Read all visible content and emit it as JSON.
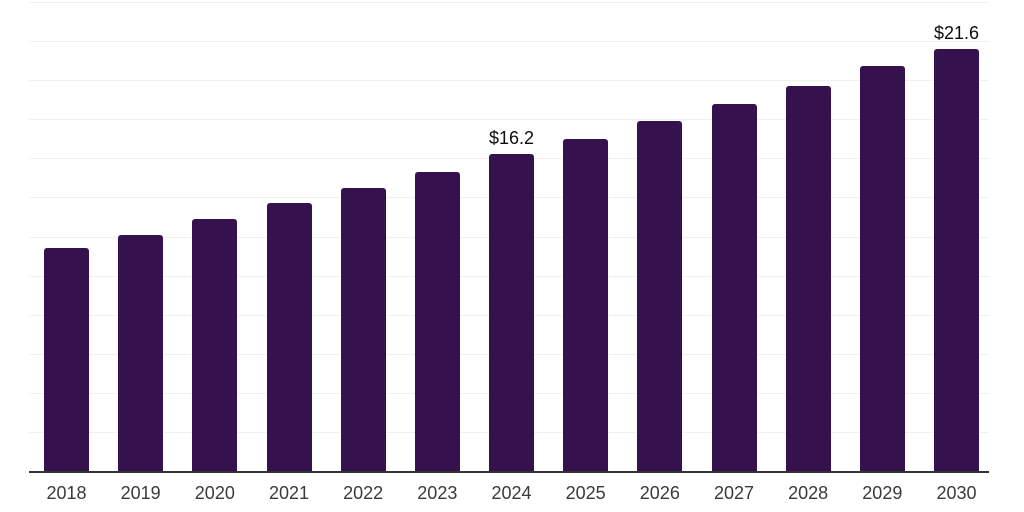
{
  "chart_data": {
    "type": "bar",
    "categories": [
      "2018",
      "2019",
      "2020",
      "2021",
      "2022",
      "2023",
      "2024",
      "2025",
      "2026",
      "2027",
      "2028",
      "2029",
      "2030"
    ],
    "values": [
      11.4,
      12.1,
      12.9,
      13.7,
      14.5,
      15.3,
      16.2,
      17.0,
      17.9,
      18.8,
      19.7,
      20.7,
      21.6
    ],
    "value_labels": [
      {
        "category": "2024",
        "text": "$16.2"
      },
      {
        "category": "2030",
        "text": "$21.6"
      }
    ],
    "xlabel": "",
    "ylabel": "",
    "ylim": [
      0,
      24
    ],
    "gridline_step": 2,
    "grid": "horizontal",
    "legend": "none",
    "y_axis_tick_labels_visible": false,
    "colors": {
      "bar": "#35114E",
      "gridline": "#F0F0F0",
      "axis_line": "#333333",
      "tick_label": "#3A3A3A",
      "value_label": "#0D0D0D",
      "background": "#FFFFFF"
    }
  }
}
